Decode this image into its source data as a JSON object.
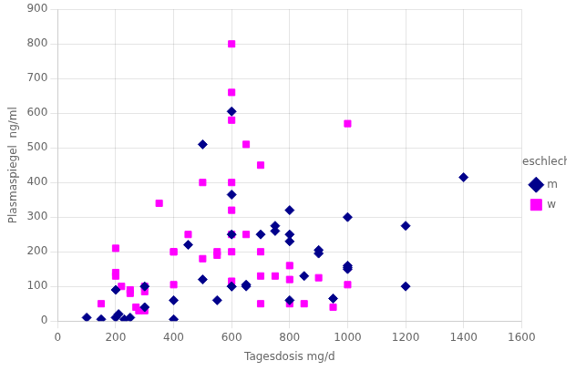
{
  "chart_data": {
    "type": "scatter",
    "xlabel": "Tagesdosis mg/d",
    "ylabel": "Plasmaspiegel  ng/ml",
    "legend_title": "Geschlecht",
    "xlim": [
      0,
      1600
    ],
    "ylim": [
      0,
      900
    ],
    "xticks": [
      0,
      200,
      400,
      600,
      800,
      1000,
      1200,
      1400,
      1600
    ],
    "yticks": [
      0,
      100,
      200,
      300,
      400,
      500,
      600,
      700,
      800,
      900
    ],
    "grid": true,
    "legend": "right",
    "series": [
      {
        "name": "m",
        "color": "#00008B",
        "marker": "diamond",
        "x": [
          100,
          150,
          200,
          200,
          210,
          230,
          250,
          300,
          300,
          400,
          400,
          450,
          500,
          500,
          550,
          600,
          600,
          600,
          600,
          600,
          650,
          650,
          700,
          750,
          750,
          800,
          800,
          800,
          800,
          850,
          900,
          900,
          950,
          1000,
          1000,
          1000,
          1000,
          1200,
          1200,
          1400
        ],
        "values": [
          10,
          5,
          90,
          10,
          20,
          5,
          10,
          100,
          40,
          60,
          5,
          220,
          120,
          510,
          60,
          605,
          365,
          250,
          100,
          100,
          100,
          105,
          250,
          260,
          275,
          320,
          250,
          230,
          60,
          130,
          205,
          195,
          65,
          300,
          160,
          150,
          155,
          275,
          100,
          415
        ]
      },
      {
        "name": "w",
        "color": "#ff00ff",
        "marker": "square",
        "x": [
          150,
          200,
          200,
          200,
          220,
          250,
          250,
          270,
          280,
          300,
          300,
          300,
          350,
          400,
          400,
          400,
          450,
          500,
          500,
          550,
          550,
          600,
          600,
          600,
          600,
          600,
          600,
          600,
          600,
          650,
          650,
          700,
          700,
          700,
          700,
          750,
          800,
          800,
          800,
          850,
          900,
          950,
          1000,
          1000,
          1000
        ],
        "values": [
          50,
          210,
          140,
          130,
          100,
          90,
          80,
          40,
          30,
          100,
          85,
          30,
          340,
          200,
          200,
          105,
          250,
          400,
          180,
          190,
          200,
          800,
          660,
          580,
          400,
          320,
          250,
          200,
          115,
          510,
          250,
          450,
          200,
          130,
          50,
          130,
          160,
          120,
          50,
          50,
          125,
          40,
          570,
          155,
          105
        ]
      }
    ]
  }
}
